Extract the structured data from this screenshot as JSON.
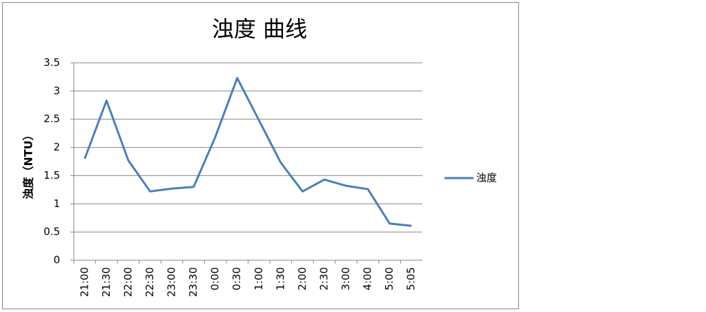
{
  "chart_data": {
    "type": "line",
    "title": "浊度 曲线",
    "ylabel": "浊度（NTU）",
    "categories": [
      "21:00",
      "21:30",
      "22:00",
      "22:30",
      "23:00",
      "23:30",
      "0:00",
      "0:30",
      "1:00",
      "1:30",
      "2:00",
      "2:30",
      "3:00",
      "4:00",
      "5:00",
      "5:05"
    ],
    "series": [
      {
        "name": "浊度",
        "color": "#4a7ebb",
        "values": [
          1.8,
          2.83,
          1.77,
          1.22,
          1.27,
          1.3,
          2.19,
          3.23,
          2.48,
          1.73,
          1.22,
          1.43,
          1.32,
          1.26,
          0.65,
          0.61
        ]
      }
    ],
    "ylim": [
      0,
      3.5
    ],
    "yticks": [
      0,
      0.5,
      1,
      1.5,
      2,
      2.5,
      3,
      3.5
    ],
    "grid": true,
    "legend": "right"
  }
}
